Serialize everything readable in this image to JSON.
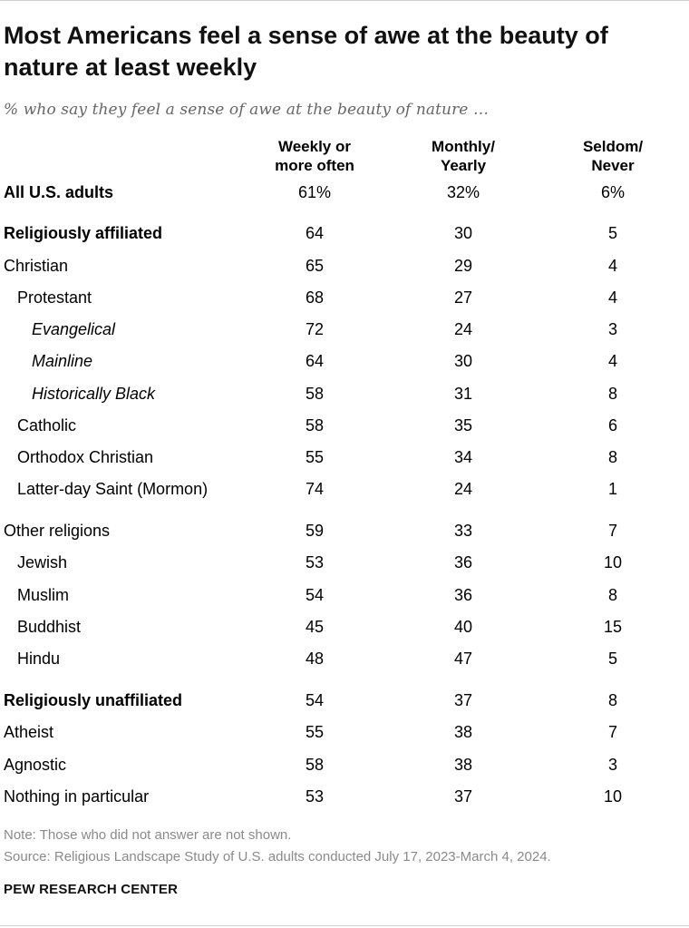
{
  "chart_data": {
    "type": "table",
    "title": "Most Americans feel a sense of awe at the beauty of nature at least weekly",
    "subtitle": "% who say they feel a sense of awe at the beauty of nature …",
    "columns": [
      {
        "line1": "Weekly or",
        "line2": "more often"
      },
      {
        "line1": "Monthly/",
        "line2": "Yearly"
      },
      {
        "line1": "Seldom/",
        "line2": "Never"
      }
    ],
    "rows": [
      {
        "label": "All U.S. adults",
        "values": [
          "61%",
          "32%",
          "6%"
        ]
      },
      {
        "label": "Religiously affiliated",
        "values": [
          "64",
          "30",
          "5"
        ]
      },
      {
        "label": "Christian",
        "values": [
          "65",
          "29",
          "4"
        ]
      },
      {
        "label": "Protestant",
        "values": [
          "68",
          "27",
          "4"
        ]
      },
      {
        "label": "Evangelical",
        "values": [
          "72",
          "24",
          "3"
        ]
      },
      {
        "label": "Mainline",
        "values": [
          "64",
          "30",
          "4"
        ]
      },
      {
        "label": "Historically Black",
        "values": [
          "58",
          "31",
          "8"
        ]
      },
      {
        "label": "Catholic",
        "values": [
          "58",
          "35",
          "6"
        ]
      },
      {
        "label": "Orthodox Christian",
        "values": [
          "55",
          "34",
          "8"
        ]
      },
      {
        "label": "Latter-day Saint (Mormon)",
        "values": [
          "74",
          "24",
          "1"
        ]
      },
      {
        "label": "Other religions",
        "values": [
          "59",
          "33",
          "7"
        ]
      },
      {
        "label": "Jewish",
        "values": [
          "53",
          "36",
          "10"
        ]
      },
      {
        "label": "Muslim",
        "values": [
          "54",
          "36",
          "8"
        ]
      },
      {
        "label": "Buddhist",
        "values": [
          "45",
          "40",
          "15"
        ]
      },
      {
        "label": "Hindu",
        "values": [
          "48",
          "47",
          "5"
        ]
      },
      {
        "label": "Religiously unaffiliated",
        "values": [
          "54",
          "37",
          "8"
        ]
      },
      {
        "label": "Atheist",
        "values": [
          "55",
          "38",
          "7"
        ]
      },
      {
        "label": "Agnostic",
        "values": [
          "58",
          "38",
          "3"
        ]
      },
      {
        "label": "Nothing in particular",
        "values": [
          "53",
          "37",
          "10"
        ]
      }
    ],
    "note": "Note: Those who did not answer are not shown.",
    "source": "Source: Religious Landscape Study of U.S. adults conducted July 17, 2023-March 4, 2024.",
    "brand": "PEW RESEARCH CENTER"
  }
}
